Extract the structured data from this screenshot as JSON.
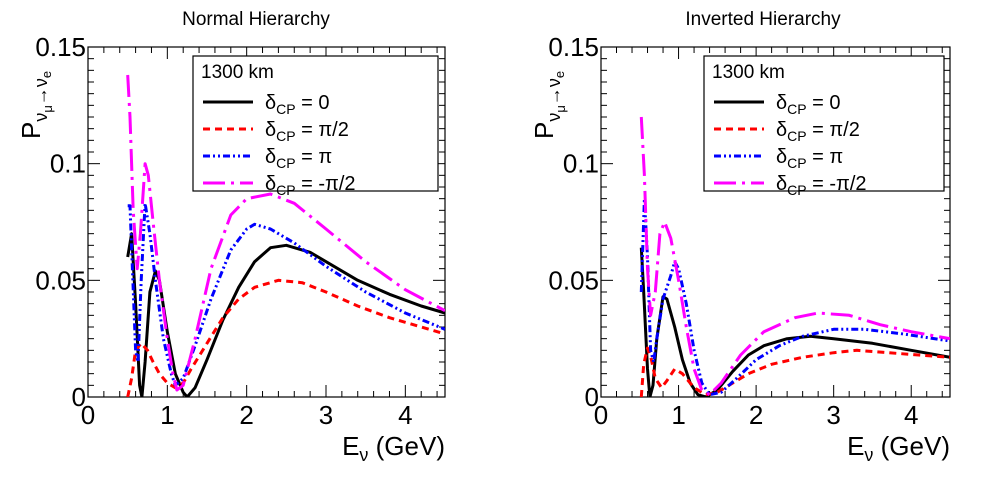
{
  "chart_data": [
    {
      "type": "line",
      "title": "Normal Hierarchy",
      "xlabel_main": "E",
      "xlabel_sub": "ν",
      "xlabel_unit": " (GeV)",
      "ylabel_main": "P",
      "ylabel_sub": "ν",
      "ylabel_subsub": "μ",
      "ylabel_arrow": "→",
      "ylabel_tail": "ν",
      "ylabel_tail_sub": "e",
      "xlim": [
        0,
        4.5
      ],
      "ylim": [
        0,
        0.15
      ],
      "xticks": [
        0,
        1,
        2,
        3,
        4
      ],
      "xtick_labels": [
        "0",
        "1",
        "2",
        "3",
        "4"
      ],
      "yticks": [
        0,
        0.05,
        0.1,
        0.15
      ],
      "ytick_labels": [
        "0",
        "0.05",
        "0.1",
        "0.15"
      ],
      "legend_title": "1300 km",
      "legend_position": "top-right",
      "series": [
        {
          "name": "δCP = 0",
          "label_main": "δ",
          "label_sub": "CP",
          "label_rest": " = 0",
          "color": "#000000",
          "dash": "solid",
          "points": [
            [
              0.5,
              0.06
            ],
            [
              0.55,
              0.07
            ],
            [
              0.6,
              0.04
            ],
            [
              0.65,
              0.005
            ],
            [
              0.68,
              0.0
            ],
            [
              0.72,
              0.015
            ],
            [
              0.78,
              0.045
            ],
            [
              0.85,
              0.054
            ],
            [
              0.9,
              0.05
            ],
            [
              1.0,
              0.028
            ],
            [
              1.1,
              0.01
            ],
            [
              1.2,
              0.002
            ],
            [
              1.25,
              0.0
            ],
            [
              1.35,
              0.004
            ],
            [
              1.5,
              0.016
            ],
            [
              1.7,
              0.033
            ],
            [
              1.9,
              0.047
            ],
            [
              2.1,
              0.058
            ],
            [
              2.3,
              0.064
            ],
            [
              2.5,
              0.065
            ],
            [
              2.8,
              0.062
            ],
            [
              3.1,
              0.056
            ],
            [
              3.4,
              0.05
            ],
            [
              3.8,
              0.044
            ],
            [
              4.2,
              0.039
            ],
            [
              4.5,
              0.036
            ]
          ]
        },
        {
          "name": "δCP = π/2",
          "label_main": "δ",
          "label_sub": "CP",
          "label_rest": " = π/2",
          "color": "#ff0000",
          "dash": "short",
          "points": [
            [
              0.5,
              0.0
            ],
            [
              0.55,
              0.008
            ],
            [
              0.6,
              0.02
            ],
            [
              0.67,
              0.023
            ],
            [
              0.75,
              0.02
            ],
            [
              0.82,
              0.015
            ],
            [
              0.9,
              0.01
            ],
            [
              1.0,
              0.006
            ],
            [
              1.1,
              0.004
            ],
            [
              1.2,
              0.006
            ],
            [
              1.3,
              0.012
            ],
            [
              1.5,
              0.023
            ],
            [
              1.7,
              0.034
            ],
            [
              1.9,
              0.042
            ],
            [
              2.1,
              0.047
            ],
            [
              2.4,
              0.05
            ],
            [
              2.7,
              0.049
            ],
            [
              3.0,
              0.045
            ],
            [
              3.4,
              0.039
            ],
            [
              3.8,
              0.034
            ],
            [
              4.2,
              0.03
            ],
            [
              4.5,
              0.027
            ]
          ]
        },
        {
          "name": "δCP = π",
          "label_main": "δ",
          "label_sub": "CP",
          "label_rest": " = π",
          "color": "#0000ff",
          "dash": "dashdotdot",
          "points": [
            [
              0.5,
              0.082
            ],
            [
              0.53,
              0.082
            ],
            [
              0.56,
              0.055
            ],
            [
              0.6,
              0.02
            ],
            [
              0.63,
              0.015
            ],
            [
              0.67,
              0.05
            ],
            [
              0.72,
              0.083
            ],
            [
              0.78,
              0.07
            ],
            [
              0.85,
              0.05
            ],
            [
              0.95,
              0.025
            ],
            [
              1.05,
              0.01
            ],
            [
              1.1,
              0.005
            ],
            [
              1.2,
              0.008
            ],
            [
              1.35,
              0.022
            ],
            [
              1.55,
              0.042
            ],
            [
              1.8,
              0.063
            ],
            [
              2.0,
              0.072
            ],
            [
              2.1,
              0.074
            ],
            [
              2.3,
              0.072
            ],
            [
              2.6,
              0.066
            ],
            [
              3.0,
              0.056
            ],
            [
              3.5,
              0.045
            ],
            [
              4.0,
              0.036
            ],
            [
              4.5,
              0.029
            ]
          ]
        },
        {
          "name": "δCP = -π/2",
          "label_main": "δ",
          "label_sub": "CP",
          "label_rest": " = -π/2",
          "color": "#ff00ff",
          "dash": "longdashdot",
          "points": [
            [
              0.5,
              0.138
            ],
            [
              0.53,
              0.12
            ],
            [
              0.57,
              0.08
            ],
            [
              0.62,
              0.055
            ],
            [
              0.66,
              0.07
            ],
            [
              0.72,
              0.1
            ],
            [
              0.76,
              0.095
            ],
            [
              0.82,
              0.075
            ],
            [
              0.9,
              0.05
            ],
            [
              1.0,
              0.025
            ],
            [
              1.07,
              0.01
            ],
            [
              1.12,
              0.003
            ],
            [
              1.2,
              0.005
            ],
            [
              1.35,
              0.025
            ],
            [
              1.55,
              0.055
            ],
            [
              1.8,
              0.078
            ],
            [
              2.0,
              0.085
            ],
            [
              2.3,
              0.087
            ],
            [
              2.6,
              0.083
            ],
            [
              3.0,
              0.072
            ],
            [
              3.5,
              0.058
            ],
            [
              4.0,
              0.046
            ],
            [
              4.5,
              0.037
            ]
          ]
        }
      ]
    },
    {
      "type": "line",
      "title": "Inverted Hierarchy",
      "xlabel_main": "E",
      "xlabel_sub": "ν",
      "xlabel_unit": " (GeV)",
      "ylabel_main": "P",
      "ylabel_sub": "ν",
      "ylabel_subsub": "μ",
      "ylabel_arrow": "→",
      "ylabel_tail": "ν",
      "ylabel_tail_sub": "e",
      "xlim": [
        0,
        4.5
      ],
      "ylim": [
        0,
        0.15
      ],
      "xticks": [
        0,
        1,
        2,
        3,
        4
      ],
      "xtick_labels": [
        "0",
        "1",
        "2",
        "3",
        "4"
      ],
      "yticks": [
        0,
        0.05,
        0.1,
        0.15
      ],
      "ytick_labels": [
        "0",
        "0.05",
        "0.1",
        "0.15"
      ],
      "legend_title": "1300 km",
      "legend_position": "top-right",
      "series": [
        {
          "name": "δCP = 0",
          "label_main": "δ",
          "label_sub": "CP",
          "label_rest": " = 0",
          "color": "#000000",
          "dash": "solid",
          "points": [
            [
              0.52,
              0.064
            ],
            [
              0.55,
              0.045
            ],
            [
              0.6,
              0.012
            ],
            [
              0.63,
              0.0
            ],
            [
              0.67,
              0.005
            ],
            [
              0.72,
              0.025
            ],
            [
              0.8,
              0.043
            ],
            [
              0.85,
              0.042
            ],
            [
              0.95,
              0.03
            ],
            [
              1.05,
              0.016
            ],
            [
              1.15,
              0.006
            ],
            [
              1.25,
              0.001
            ],
            [
              1.35,
              0.0
            ],
            [
              1.5,
              0.003
            ],
            [
              1.7,
              0.011
            ],
            [
              1.9,
              0.018
            ],
            [
              2.1,
              0.022
            ],
            [
              2.4,
              0.025
            ],
            [
              2.7,
              0.026
            ],
            [
              3.0,
              0.025
            ],
            [
              3.5,
              0.023
            ],
            [
              4.0,
              0.02
            ],
            [
              4.5,
              0.017
            ]
          ]
        },
        {
          "name": "δCP = π/2",
          "label_main": "δ",
          "label_sub": "CP",
          "label_rest": " = π/2",
          "color": "#ff0000",
          "dash": "short",
          "points": [
            [
              0.52,
              0.0
            ],
            [
              0.55,
              0.014
            ],
            [
              0.6,
              0.021
            ],
            [
              0.65,
              0.016
            ],
            [
              0.7,
              0.008
            ],
            [
              0.78,
              0.004
            ],
            [
              0.85,
              0.007
            ],
            [
              0.95,
              0.012
            ],
            [
              1.05,
              0.01
            ],
            [
              1.2,
              0.004
            ],
            [
              1.35,
              0.001
            ],
            [
              1.5,
              0.002
            ],
            [
              1.7,
              0.006
            ],
            [
              1.9,
              0.01
            ],
            [
              2.2,
              0.014
            ],
            [
              2.6,
              0.017
            ],
            [
              3.0,
              0.019
            ],
            [
              3.3,
              0.02
            ],
            [
              3.7,
              0.019
            ],
            [
              4.1,
              0.018
            ],
            [
              4.5,
              0.017
            ]
          ]
        },
        {
          "name": "δCP = π",
          "label_main": "δ",
          "label_sub": "CP",
          "label_rest": " = π",
          "color": "#0000ff",
          "dash": "dashdotdot",
          "points": [
            [
              0.52,
              0.045
            ],
            [
              0.56,
              0.085
            ],
            [
              0.6,
              0.06
            ],
            [
              0.64,
              0.02
            ],
            [
              0.68,
              0.015
            ],
            [
              0.72,
              0.025
            ],
            [
              0.8,
              0.042
            ],
            [
              0.9,
              0.052
            ],
            [
              0.95,
              0.058
            ],
            [
              1.0,
              0.055
            ],
            [
              1.1,
              0.04
            ],
            [
              1.2,
              0.02
            ],
            [
              1.3,
              0.006
            ],
            [
              1.4,
              0.001
            ],
            [
              1.55,
              0.002
            ],
            [
              1.75,
              0.008
            ],
            [
              2.0,
              0.016
            ],
            [
              2.3,
              0.022
            ],
            [
              2.6,
              0.026
            ],
            [
              3.0,
              0.029
            ],
            [
              3.4,
              0.029
            ],
            [
              3.9,
              0.027
            ],
            [
              4.5,
              0.024
            ]
          ]
        },
        {
          "name": "δCP = -π/2",
          "label_main": "δ",
          "label_sub": "CP",
          "label_rest": " = -π/2",
          "color": "#ff00ff",
          "dash": "longdashdot",
          "points": [
            [
              0.52,
              0.12
            ],
            [
              0.56,
              0.095
            ],
            [
              0.6,
              0.055
            ],
            [
              0.64,
              0.035
            ],
            [
              0.7,
              0.045
            ],
            [
              0.76,
              0.07
            ],
            [
              0.82,
              0.075
            ],
            [
              0.9,
              0.068
            ],
            [
              1.0,
              0.05
            ],
            [
              1.1,
              0.03
            ],
            [
              1.2,
              0.012
            ],
            [
              1.3,
              0.003
            ],
            [
              1.4,
              0.001
            ],
            [
              1.55,
              0.006
            ],
            [
              1.8,
              0.018
            ],
            [
              2.1,
              0.028
            ],
            [
              2.5,
              0.034
            ],
            [
              2.8,
              0.036
            ],
            [
              3.2,
              0.035
            ],
            [
              3.6,
              0.031
            ],
            [
              4.0,
              0.028
            ],
            [
              4.5,
              0.025
            ]
          ]
        }
      ]
    }
  ]
}
